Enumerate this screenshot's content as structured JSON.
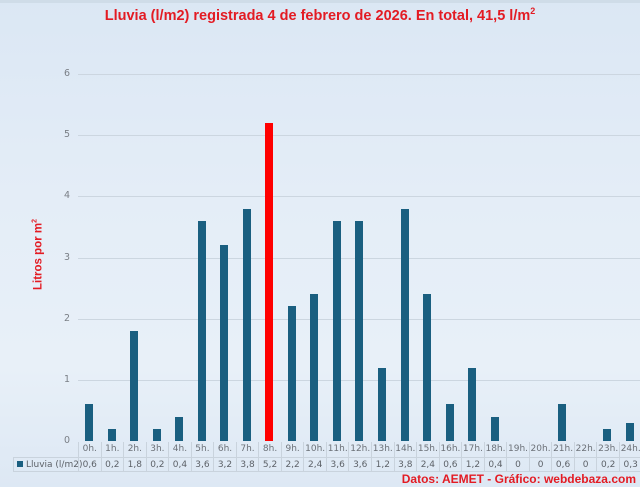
{
  "title": {
    "text": "Lluvia (l/m2) registrada 4 de febrero de 2026. En total, 41,5 l/m",
    "superscript": "2"
  },
  "y_axis": {
    "label": "Litros por m",
    "label_superscript": "2",
    "ticks": [
      "0",
      "1",
      "2",
      "3",
      "4",
      "5",
      "6"
    ]
  },
  "legend": {
    "series_label": "Lluvia (l/m2)"
  },
  "source": "Datos: AEMET - Gráfico: webdebaza.com",
  "colors": {
    "bar": "#1a5f80",
    "highlight": "#ff0000",
    "title": "#e31b23",
    "background": "#dfeaf5"
  },
  "table": {
    "hours": [
      "0h.",
      "1h.",
      "2h.",
      "3h.",
      "4h.",
      "5h.",
      "6h.",
      "7h.",
      "8h.",
      "9h.",
      "10h.",
      "11h.",
      "12h.",
      "13h.",
      "14h.",
      "15h.",
      "16h.",
      "17h.",
      "18h.",
      "19h.",
      "20h.",
      "21h.",
      "22h.",
      "23h.",
      "24h."
    ],
    "values": [
      "0,6",
      "0,2",
      "1,8",
      "0,2",
      "0,4",
      "3,6",
      "3,2",
      "3,8",
      "5,2",
      "2,2",
      "2,4",
      "3,6",
      "3,6",
      "1,2",
      "3,8",
      "2,4",
      "0,6",
      "1,2",
      "0,4",
      "0",
      "0",
      "0,6",
      "0",
      "0,2",
      "0,3"
    ]
  },
  "chart_data": {
    "type": "bar",
    "title": "Lluvia (l/m2) registrada 4 de febrero de 2026. En total, 41,5 l/m²",
    "xlabel": "",
    "ylabel": "Litros por m²",
    "categories": [
      "0h.",
      "1h.",
      "2h.",
      "3h.",
      "4h.",
      "5h.",
      "6h.",
      "7h.",
      "8h.",
      "9h.",
      "10h.",
      "11h.",
      "12h.",
      "13h.",
      "14h.",
      "15h.",
      "16h.",
      "17h.",
      "18h.",
      "19h.",
      "20h.",
      "21h.",
      "22h.",
      "23h.",
      "24h."
    ],
    "series": [
      {
        "name": "Lluvia (l/m2)",
        "values": [
          0.6,
          0.2,
          1.8,
          0.2,
          0.4,
          3.6,
          3.2,
          3.8,
          5.2,
          2.2,
          2.4,
          3.6,
          3.6,
          1.2,
          3.8,
          2.4,
          0.6,
          1.2,
          0.4,
          0,
          0,
          0.6,
          0,
          0.2,
          0.3
        ]
      }
    ],
    "highlight": {
      "category": "8h.",
      "color": "#ff0000"
    },
    "ylim": [
      0,
      6
    ],
    "yticks": [
      0,
      1,
      2,
      3,
      4,
      5,
      6
    ],
    "grid": true,
    "legend_position": "data-table",
    "total": "41,5 l/m²",
    "source": "Datos: AEMET - Gráfico: webdebaza.com"
  }
}
